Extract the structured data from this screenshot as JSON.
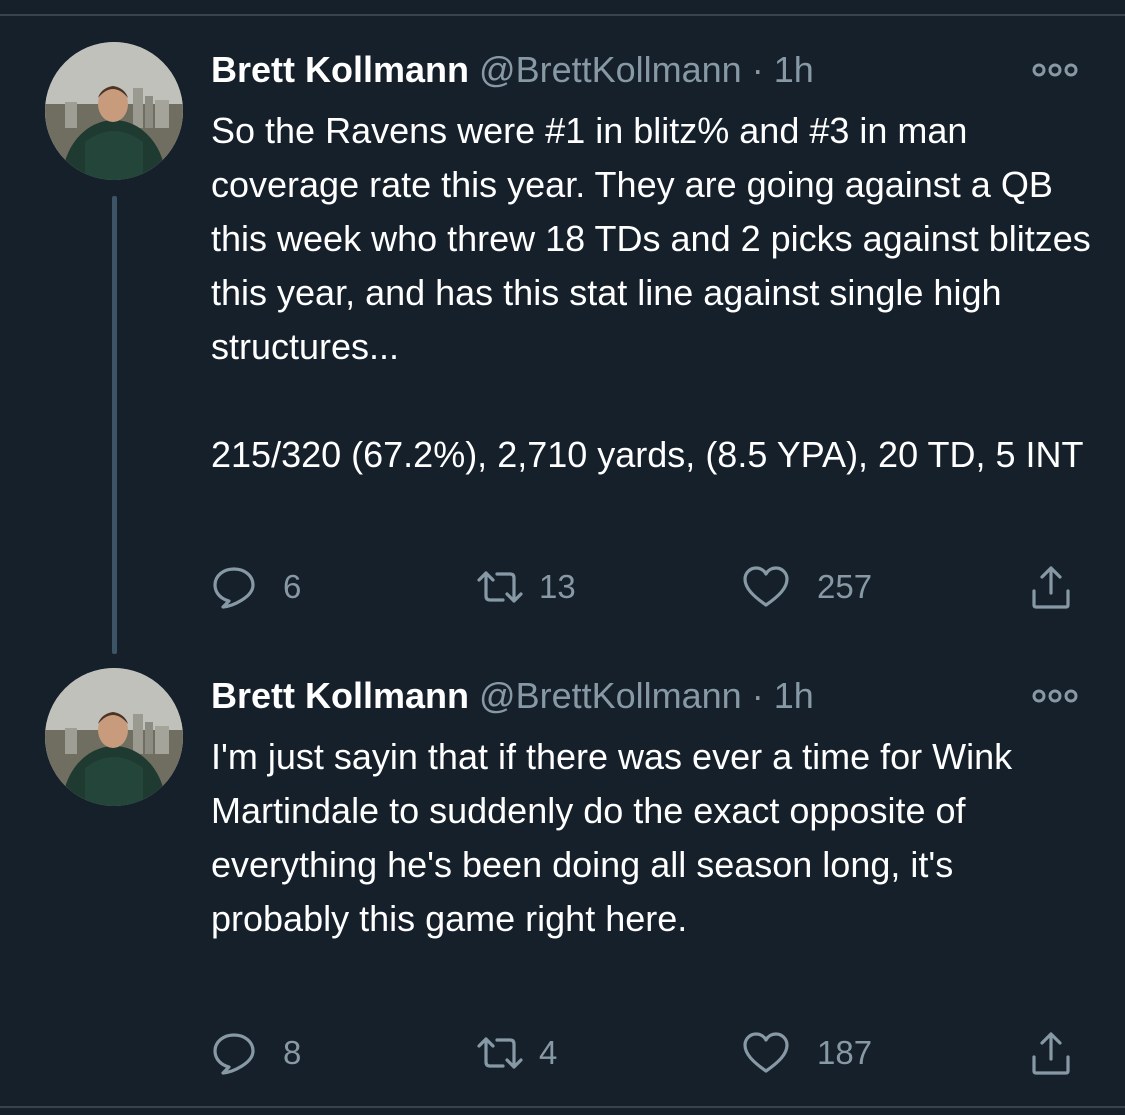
{
  "tweets": [
    {
      "name": "Brett Kollmann",
      "handle": "@BrettKollmann",
      "separator": "·",
      "time": "1h",
      "paragraphs": [
        "So the Ravens were #1 in blitz% and #3 in man coverage rate this year. They are going against a QB this week who threw 18 TDs and 2 picks against blitzes this year, and has this stat line against single high structures...",
        "215/320 (67.2%), 2,710 yards, (8.5 YPA), 20 TD, 5 INT"
      ],
      "replies": "6",
      "retweets": "13",
      "likes": "257"
    },
    {
      "name": "Brett Kollmann",
      "handle": "@BrettKollmann",
      "separator": "·",
      "time": "1h",
      "paragraphs": [
        "I'm just sayin that if there was ever a time for Wink Martindale to suddenly do the exact opposite of everything he's been doing all season long, it's probably this game right here."
      ],
      "replies": "8",
      "retweets": "4",
      "likes": "187"
    }
  ],
  "icons": {
    "more": "more-icon",
    "reply": "reply-icon",
    "retweet": "retweet-icon",
    "like": "like-icon",
    "share": "share-icon"
  },
  "colors": {
    "background": "#15202b",
    "text": "#ffffff",
    "secondary": "#8899a6",
    "thread_line": "#3d5466",
    "divider": "#38444d"
  }
}
